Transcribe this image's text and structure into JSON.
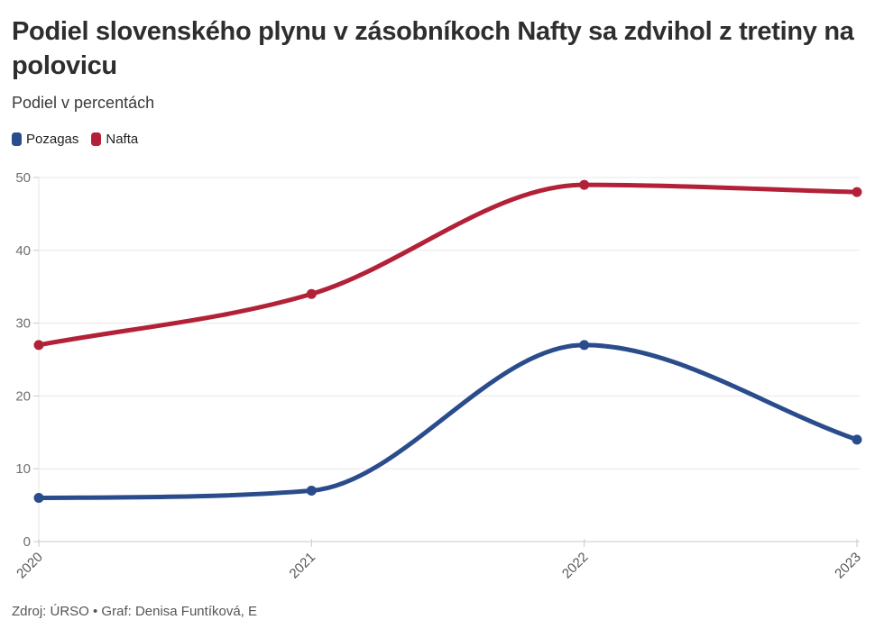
{
  "header": {
    "title": "Podiel slovenského plynu v zásobníkoch Nafty sa zdvihol z tretiny na polovicu",
    "subtitle": "Podiel v percentách"
  },
  "footer": {
    "source": "Zdroj: ÚRSO • Graf: Denisa Funtíková, E"
  },
  "colors": {
    "pozagas": "#2a4c8c",
    "nafta": "#b22138",
    "gridline": "#e7e7e7",
    "baseline": "#c9c9c9",
    "axis": "#e4e4e4",
    "tick": "#c9c9c9"
  },
  "chart_data": {
    "type": "line",
    "x": [
      2020,
      2021,
      2022,
      2023
    ],
    "series": [
      {
        "name": "Pozagas",
        "color": "#2a4c8c",
        "values": [
          6,
          7,
          27,
          14
        ]
      },
      {
        "name": "Nafta",
        "color": "#b22138",
        "values": [
          27,
          34,
          49,
          48
        ]
      }
    ],
    "title": "Podiel slovenského plynu v zásobníkoch Nafty sa zdvihol z tretiny na polovicu",
    "subtitle": "Podiel v percentách",
    "xlabel": "",
    "ylabel": "Podiel v percentách",
    "ylim": [
      0,
      50
    ],
    "yticks": [
      0,
      10,
      20,
      30,
      40,
      50
    ],
    "grid": true,
    "legend_position": "top-left",
    "curve": "monotone"
  }
}
